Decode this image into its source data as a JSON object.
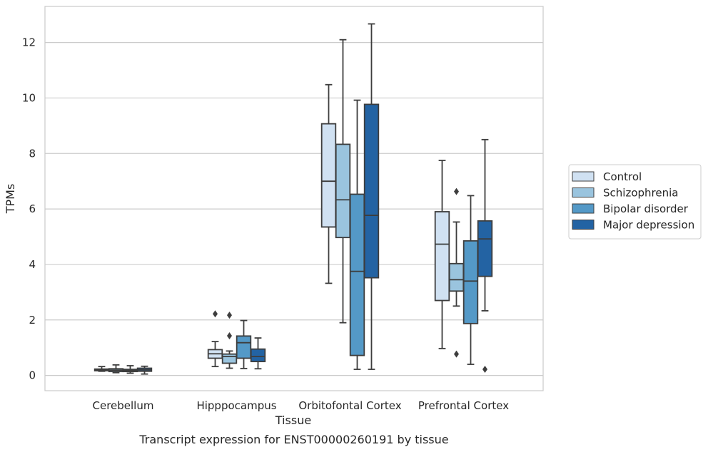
{
  "chart_data": {
    "type": "box",
    "caption": "Transcript expression for ENST00000260191 by tissue",
    "xlabel": "Tissue",
    "ylabel": "TPMs",
    "ylim": [
      -0.55,
      13.3
    ],
    "yticks": [
      0,
      2,
      4,
      6,
      8,
      10,
      12
    ],
    "grid": true,
    "legend_position": "right",
    "categories": [
      "Cerebellum",
      "Hipppocampus",
      "Orbitofontal Cortex",
      "Prefrontal Cortex"
    ],
    "series": [
      {
        "name": "Control",
        "color": "#d0e1f2",
        "boxes": [
          {
            "whisker_low": 0.15,
            "q1": 0.17,
            "median": 0.2,
            "q3": 0.23,
            "whisker_high": 0.32,
            "outliers": []
          },
          {
            "whisker_low": 0.32,
            "q1": 0.62,
            "median": 0.78,
            "q3": 0.93,
            "whisker_high": 1.22,
            "outliers": [
              2.22
            ]
          },
          {
            "whisker_low": 3.32,
            "q1": 5.35,
            "median": 7.0,
            "q3": 9.07,
            "whisker_high": 10.48,
            "outliers": []
          },
          {
            "whisker_low": 0.97,
            "q1": 2.7,
            "median": 4.73,
            "q3": 5.9,
            "whisker_high": 7.75,
            "outliers": []
          }
        ]
      },
      {
        "name": "Schizophrenia",
        "color": "#9ac4de",
        "boxes": [
          {
            "whisker_low": 0.1,
            "q1": 0.14,
            "median": 0.19,
            "q3": 0.24,
            "whisker_high": 0.38,
            "outliers": []
          },
          {
            "whisker_low": 0.26,
            "q1": 0.44,
            "median": 0.68,
            "q3": 0.77,
            "whisker_high": 0.88,
            "outliers": [
              2.17,
              1.43
            ]
          },
          {
            "whisker_low": 1.9,
            "q1": 4.97,
            "median": 6.33,
            "q3": 8.33,
            "whisker_high": 12.1,
            "outliers": []
          },
          {
            "whisker_low": 2.5,
            "q1": 3.04,
            "median": 3.45,
            "q3": 4.03,
            "whisker_high": 5.53,
            "outliers": [
              6.63,
              0.77
            ]
          }
        ]
      },
      {
        "name": "Bipolar disorder",
        "color": "#5499c7",
        "boxes": [
          {
            "whisker_low": 0.08,
            "q1": 0.14,
            "median": 0.18,
            "q3": 0.22,
            "whisker_high": 0.35,
            "outliers": []
          },
          {
            "whisker_low": 0.25,
            "q1": 0.62,
            "median": 1.18,
            "q3": 1.42,
            "whisker_high": 1.98,
            "outliers": []
          },
          {
            "whisker_low": 0.22,
            "q1": 0.72,
            "median": 3.75,
            "q3": 6.53,
            "whisker_high": 9.92,
            "outliers": []
          },
          {
            "whisker_low": 0.4,
            "q1": 1.87,
            "median": 3.4,
            "q3": 4.85,
            "whisker_high": 6.48,
            "outliers": []
          }
        ]
      },
      {
        "name": "Major depression",
        "color": "#2363a3",
        "boxes": [
          {
            "whisker_low": 0.05,
            "q1": 0.15,
            "median": 0.2,
            "q3": 0.26,
            "whisker_high": 0.33,
            "outliers": []
          },
          {
            "whisker_low": 0.24,
            "q1": 0.5,
            "median": 0.68,
            "q3": 0.95,
            "whisker_high": 1.35,
            "outliers": []
          },
          {
            "whisker_low": 0.22,
            "q1": 3.52,
            "median": 5.77,
            "q3": 9.77,
            "whisker_high": 12.67,
            "outliers": []
          },
          {
            "whisker_low": 2.33,
            "q1": 3.57,
            "median": 4.92,
            "q3": 5.57,
            "whisker_high": 8.5,
            "outliers": [
              0.22
            ]
          }
        ]
      }
    ]
  }
}
